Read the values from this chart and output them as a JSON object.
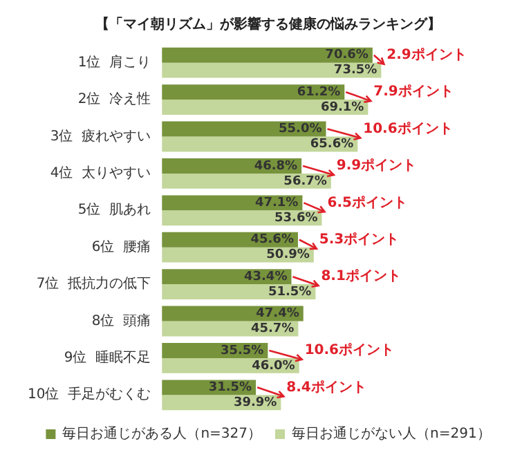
{
  "chart_data": {
    "type": "bar",
    "orientation": "horizontal",
    "title": "【「マイ朝リズム」が影響する健康の悩みランキング】",
    "categories": [
      "1位  肩こり",
      "2位  冷え性",
      "3位  疲れやすい",
      "4位  太りやすい",
      "5位  肌あれ",
      "6位  腰痛",
      "7位  抵抗力の低下",
      "8位  頭痛",
      "9位  睡眠不足",
      "10位  手足がむくむ"
    ],
    "series": [
      {
        "name": "毎日お通じがある人（n=327）",
        "color": "#77933c",
        "values": [
          70.6,
          61.2,
          55.0,
          46.8,
          47.1,
          45.6,
          43.4,
          47.4,
          35.5,
          31.5
        ],
        "value_labels": [
          "70.6%",
          "61.2%",
          "55.0%",
          "46.8%",
          "47.1%",
          "45.6%",
          "43.4%",
          "47.4%",
          "35.5%",
          "31.5%"
        ]
      },
      {
        "name": "毎日お通じがない人（n=291）",
        "color": "#c3d69b",
        "values": [
          73.5,
          69.1,
          65.6,
          56.7,
          53.6,
          50.9,
          51.5,
          45.7,
          46.0,
          39.9
        ],
        "value_labels": [
          "73.5%",
          "69.1%",
          "65.6%",
          "56.7%",
          "53.6%",
          "50.9%",
          "51.5%",
          "45.7%",
          "46.0%",
          "39.9%"
        ]
      }
    ],
    "annotations": [
      {
        "text": "2.9ポイント",
        "x": 73.5,
        "y": "1位  肩こり"
      },
      {
        "text": "7.9ポイント",
        "x": 69.1,
        "y": "2位  冷え性"
      },
      {
        "text": "10.6ポイント",
        "x": 65.6,
        "y": "3位  疲れやすい"
      },
      {
        "text": "9.9ポイント",
        "x": 56.7,
        "y": "4位  太りやすい"
      },
      {
        "text": "6.5ポイント",
        "x": 53.6,
        "y": "5位  肌あれ"
      },
      {
        "text": "5.3ポイント",
        "x": 50.9,
        "y": "6位  腰痛"
      },
      {
        "text": "8.1ポイント",
        "x": 51.5,
        "y": "7位  抵抗力の低下"
      },
      {
        "text": "10.6ポイント",
        "x": 46.0,
        "y": "9位  睡眠不足"
      },
      {
        "text": "8.4ポイント",
        "x": 39.9,
        "y": "10位  手足がむくむ"
      }
    ],
    "legend": "bottom",
    "grid": false
  }
}
